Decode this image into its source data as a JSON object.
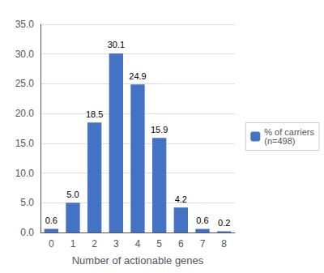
{
  "chart_data": {
    "type": "bar",
    "xlabel": "Number of actionable genes",
    "categories": [
      "0",
      "1",
      "2",
      "3",
      "4",
      "5",
      "6",
      "7",
      "8"
    ],
    "series": [
      {
        "name": "% of carriers\n(n=498)",
        "color": "#4472C4",
        "values": [
          0.6,
          5.0,
          18.5,
          30.1,
          24.9,
          15.9,
          4.2,
          0.6,
          0.2
        ],
        "value_labels": [
          "0.6",
          "5.0",
          "18.5",
          "30.1",
          "24.9",
          "15.9",
          "4.2",
          "0.6",
          "0.2"
        ]
      }
    ],
    "ylim": [
      0,
      35
    ],
    "yticks": [
      {
        "value": 0,
        "label": "0.0"
      },
      {
        "value": 5,
        "label": "5.0"
      },
      {
        "value": 10,
        "label": "10.0"
      },
      {
        "value": 15,
        "label": "15.0"
      },
      {
        "value": 20,
        "label": "20.0"
      },
      {
        "value": 25,
        "label": "25.0"
      },
      {
        "value": 30,
        "label": "30.0"
      },
      {
        "value": 35,
        "label": "35.0"
      }
    ],
    "grid": true,
    "legend": "right",
    "data_labels": true
  }
}
